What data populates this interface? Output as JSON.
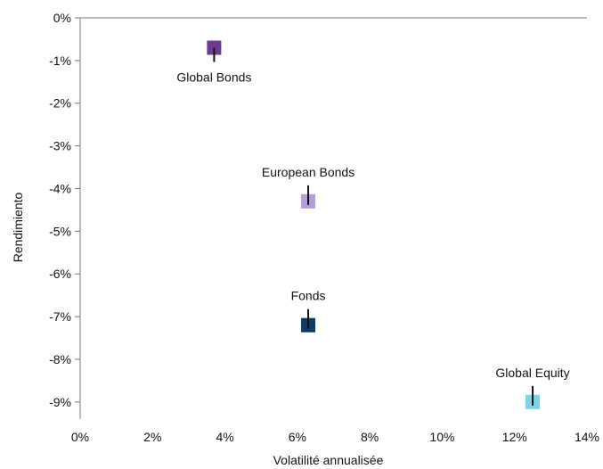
{
  "chart_data": {
    "type": "scatter",
    "title": "",
    "xlabel": "Volatilité annualisée",
    "ylabel": "Rendimiento",
    "xlim": [
      0,
      14
    ],
    "ylim": [
      -9.4,
      0
    ],
    "x_ticks": [
      0,
      2,
      4,
      6,
      8,
      10,
      12,
      14
    ],
    "x_tick_labels": [
      "0%",
      "2%",
      "4%",
      "6%",
      "8%",
      "10%",
      "12%",
      "14%"
    ],
    "y_ticks": [
      0,
      -1,
      -2,
      -3,
      -4,
      -5,
      -6,
      -7,
      -8,
      -9
    ],
    "y_tick_labels": [
      "0%",
      "-1%",
      "-2%",
      "-3%",
      "-4%",
      "-5%",
      "-6%",
      "-7%",
      "-8%",
      "-9%"
    ],
    "grid": false,
    "legend": "none",
    "points": [
      {
        "label": "Global Bonds",
        "x": 3.7,
        "y": -0.7,
        "color": "#6a3d8f",
        "label_position": "below"
      },
      {
        "label": "European Bonds",
        "x": 6.3,
        "y": -4.3,
        "color": "#b39ddb",
        "label_position": "above"
      },
      {
        "label": "Fonds",
        "x": 6.3,
        "y": -7.2,
        "color": "#0d3b66",
        "label_position": "above"
      },
      {
        "label": "Global Equity",
        "x": 12.5,
        "y": -9.0,
        "color": "#7dd3e8",
        "label_position": "above"
      }
    ]
  }
}
